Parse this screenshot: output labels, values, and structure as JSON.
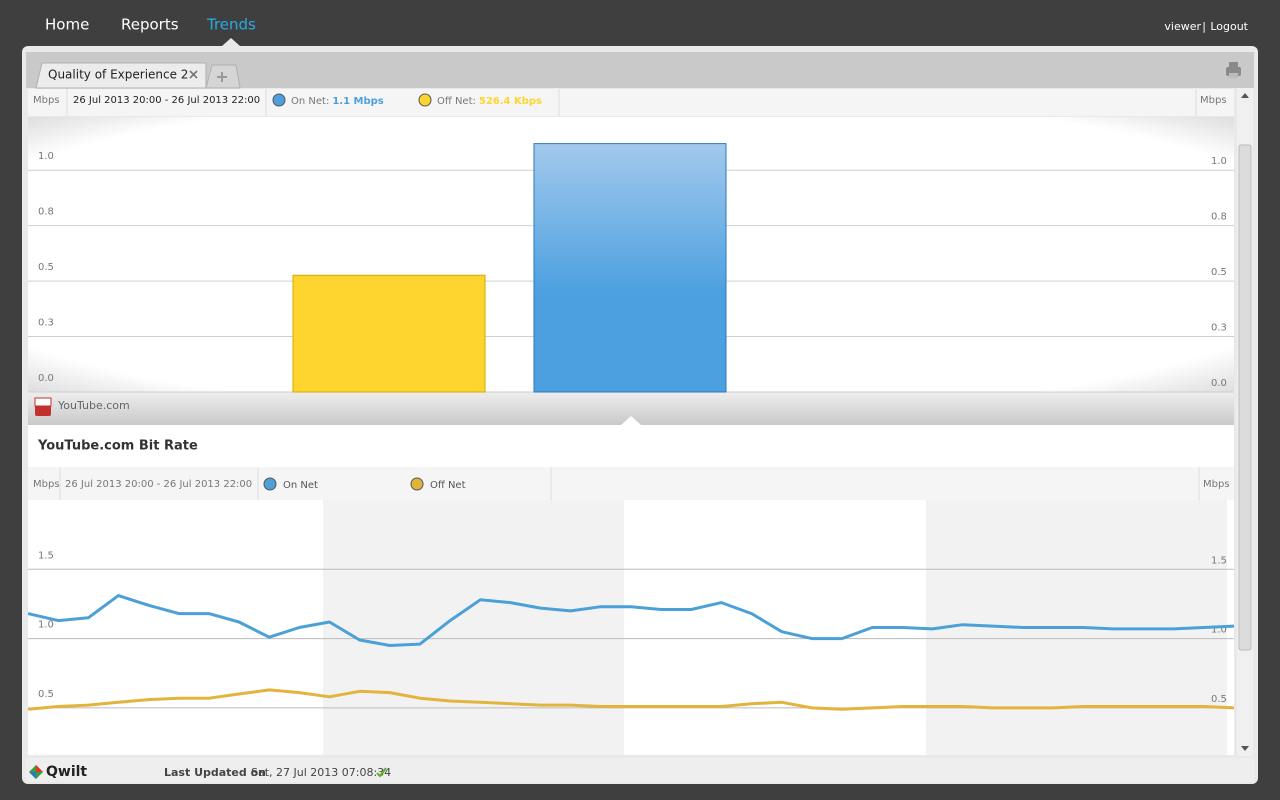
{
  "nav": {
    "items": [
      "Home",
      "Reports",
      "Trends"
    ],
    "active": "Trends",
    "user": "viewer",
    "separator": "|",
    "logout": "Logout"
  },
  "tabs": [
    "Quality of Experience 2"
  ],
  "chart_data": [
    {
      "type": "bar",
      "unit": "Mbps",
      "subtitle": "26 Jul 2013 20:00 - 26 Jul 2013 22:00",
      "categories": [
        "YouTube.com"
      ],
      "series": [
        {
          "name": "On Net:",
          "color": "#4ca0e0",
          "values": [
            1.12
          ],
          "value_labels": [
            "1.1 Mbps"
          ]
        },
        {
          "name": "Off Net:",
          "color": "#fed52e",
          "values": [
            0.5264
          ],
          "value_labels": [
            "526.4 Kbps"
          ]
        }
      ],
      "ylim": [
        0,
        1.24
      ],
      "yticks": [
        {
          "value": 0,
          "label": "0.0"
        },
        {
          "value": 0.25,
          "label": "0.3"
        },
        {
          "value": 0.5,
          "label": "0.5"
        },
        {
          "value": 0.75,
          "label": "0.8"
        },
        {
          "value": 1,
          "label": "1.0"
        }
      ],
      "grid": true
    },
    {
      "type": "line",
      "title": "YouTube.com Bit Rate",
      "unit": "Mbps",
      "subtitle": "26 Jul 2013 20:00 - 26 Jul 2013 22:00",
      "series": [
        {
          "name": "On Net",
          "color": "#4ca0d8",
          "values": [
            1.18,
            1.13,
            1.15,
            1.31,
            1.24,
            1.18,
            1.18,
            1.12,
            1.01,
            1.08,
            1.12,
            0.99,
            0.95,
            0.96,
            1.13,
            1.28,
            1.26,
            1.22,
            1.2,
            1.23,
            1.23,
            1.21,
            1.21,
            1.26,
            1.18,
            1.05,
            1.0,
            1.0,
            1.08,
            1.08,
            1.07,
            1.1,
            1.09,
            1.08,
            1.08,
            1.08,
            1.07,
            1.07,
            1.07,
            1.08,
            1.09
          ]
        },
        {
          "name": "Off Net",
          "color": "#e3b43c",
          "values": [
            0.49,
            0.51,
            0.52,
            0.54,
            0.56,
            0.57,
            0.57,
            0.6,
            0.63,
            0.61,
            0.58,
            0.62,
            0.61,
            0.57,
            0.55,
            0.54,
            0.53,
            0.52,
            0.52,
            0.51,
            0.51,
            0.51,
            0.51,
            0.51,
            0.53,
            0.54,
            0.5,
            0.49,
            0.5,
            0.51,
            0.51,
            0.51,
            0.5,
            0.5,
            0.5,
            0.51,
            0.51,
            0.51,
            0.51,
            0.51,
            0.5
          ]
        }
      ],
      "ylim": [
        0.16,
        2.0
      ],
      "yticks": [
        0.5,
        {
          "value": 1,
          "label": "1.0"
        },
        1.5
      ],
      "grid": true
    }
  ],
  "footer": {
    "brand": "Qwilt",
    "updated_label": "Last Updated on",
    "updated": "Sat, 27 Jul 2013 07:08:34"
  }
}
